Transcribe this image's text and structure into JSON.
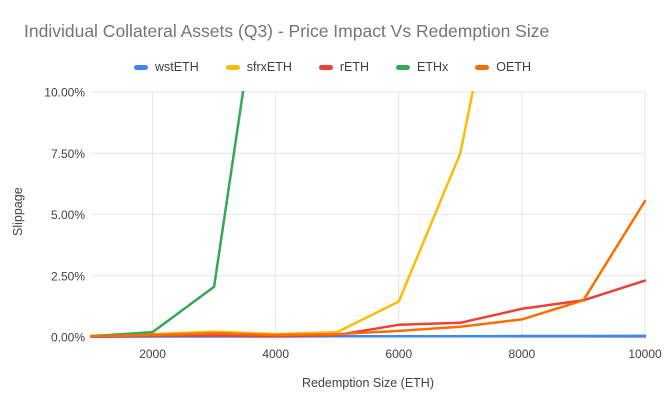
{
  "chart": {
    "title": "Individual Collateral Assets (Q3) - Price Impact Vs Redemption Size",
    "ylabel": "Slippage",
    "xlabel": "Redemption Size (ETH)"
  },
  "colors": {
    "title_text": "#757575",
    "axis_text": "#424242",
    "legend_text": "#3c4043",
    "gridline": "#e6e6e6",
    "baseline": "#424242",
    "background": "#ffffff"
  },
  "chart_data": {
    "type": "line",
    "title": "Individual Collateral Assets (Q3) - Price Impact Vs Redemption Size",
    "xlabel": "Redemption Size (ETH)",
    "ylabel": "Slippage",
    "xlim": [
      1000,
      10000
    ],
    "ylim": [
      0,
      10
    ],
    "x_ticks": [
      2000,
      4000,
      6000,
      8000,
      10000
    ],
    "y_ticks": [
      {
        "label": "0.00%",
        "value": 0
      },
      {
        "label": "2.50%",
        "value": 2.5
      },
      {
        "label": "5.00%",
        "value": 5
      },
      {
        "label": "7.50%",
        "value": 7.5
      },
      {
        "label": "10.00%",
        "value": 10
      }
    ],
    "grid": true,
    "legend_position": "top",
    "x": [
      1000,
      2000,
      3000,
      4000,
      5000,
      6000,
      7000,
      8000,
      9000,
      10000
    ],
    "series": [
      {
        "name": "wstETH",
        "color": "#4285F4",
        "values": [
          0.01,
          0.02,
          0.02,
          0.02,
          0.03,
          0.03,
          0.03,
          0.04,
          0.04,
          0.05
        ]
      },
      {
        "name": "sfrxETH",
        "color": "#FBBC04",
        "values": [
          0.05,
          0.12,
          0.22,
          0.12,
          0.2,
          1.45,
          7.5,
          20,
          null,
          null
        ],
        "clipped_above_pct": 10,
        "exits_plot_at_x": 7200
      },
      {
        "name": "rETH",
        "color": "#EA4335",
        "values": [
          0.02,
          0.05,
          0.06,
          0.03,
          0.08,
          0.5,
          0.58,
          1.15,
          1.5,
          2.3
        ]
      },
      {
        "name": "ETHx",
        "color": "#34A853",
        "values": [
          0.03,
          0.2,
          2.05,
          19,
          null,
          null,
          null,
          null,
          null,
          null
        ],
        "clipped_above_pct": 10,
        "exits_plot_at_x": 3460
      },
      {
        "name": "OETH",
        "color": "#FF6D01",
        "values": [
          0.03,
          0.08,
          0.15,
          0.08,
          0.12,
          0.25,
          0.42,
          0.72,
          1.5,
          5.55
        ]
      }
    ]
  }
}
